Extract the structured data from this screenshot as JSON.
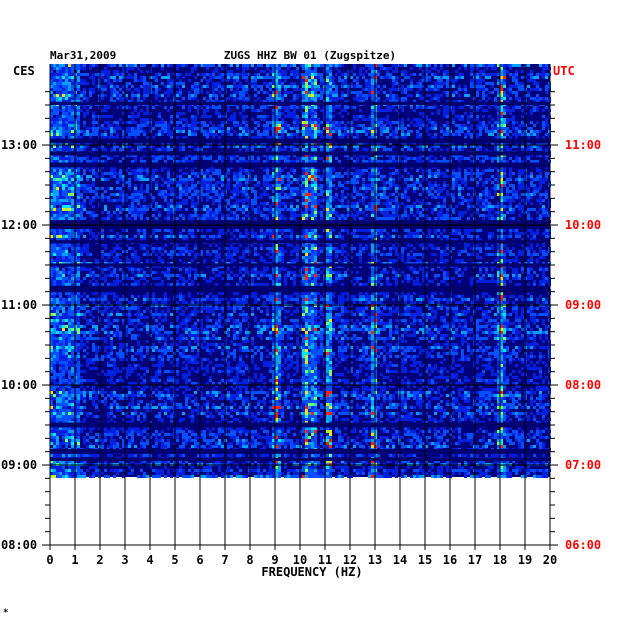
{
  "chart_data": {
    "type": "heatmap",
    "date": "Mar31,2009",
    "title": "ZUGS HHZ BW 01 (Zugspitze)",
    "left_axis_label": "CES",
    "right_axis_label": "UTC",
    "xlabel": "FREQUENCY (HZ)",
    "xlim": [
      0,
      20
    ],
    "x_ticks": [
      "0",
      "1",
      "2",
      "3",
      "4",
      "5",
      "6",
      "7",
      "8",
      "9",
      "10",
      "11",
      "12",
      "13",
      "14",
      "15",
      "16",
      "17",
      "18",
      "19",
      "20"
    ],
    "left_time_labels": [
      "13:00",
      "12:00",
      "11:00",
      "10:00",
      "09:00",
      "08:00"
    ],
    "right_time_labels": [
      "11:00",
      "10:00",
      "09:00",
      "08:00",
      "07:00",
      "06:00"
    ],
    "left_time_hours": [
      13,
      12,
      11,
      10,
      9,
      8
    ],
    "time_range_ces": [
      "08:00",
      "13:47"
    ],
    "data_end_ces": "08:51",
    "spectral_lines_hz": [
      9.0,
      10.2,
      10.5,
      11.1,
      12.9,
      18.0
    ],
    "dark_bands_ces": [
      [
        13.54,
        13.5
      ],
      [
        13.08,
        13.02
      ],
      [
        12.92,
        12.87
      ],
      [
        12.78,
        12.72
      ],
      [
        12.06,
        11.95
      ],
      [
        11.81,
        11.77
      ],
      [
        11.52,
        11.48
      ],
      [
        11.24,
        11.16
      ],
      [
        9.53,
        9.47
      ],
      [
        9.2,
        9.14
      ],
      [
        9.09,
        9.05
      ]
    ],
    "colors": {
      "background": "#00007a",
      "text_left": "#000000",
      "text_right": "#ff0000",
      "grid": "#000000"
    }
  },
  "footer": {
    "mark": "*"
  }
}
